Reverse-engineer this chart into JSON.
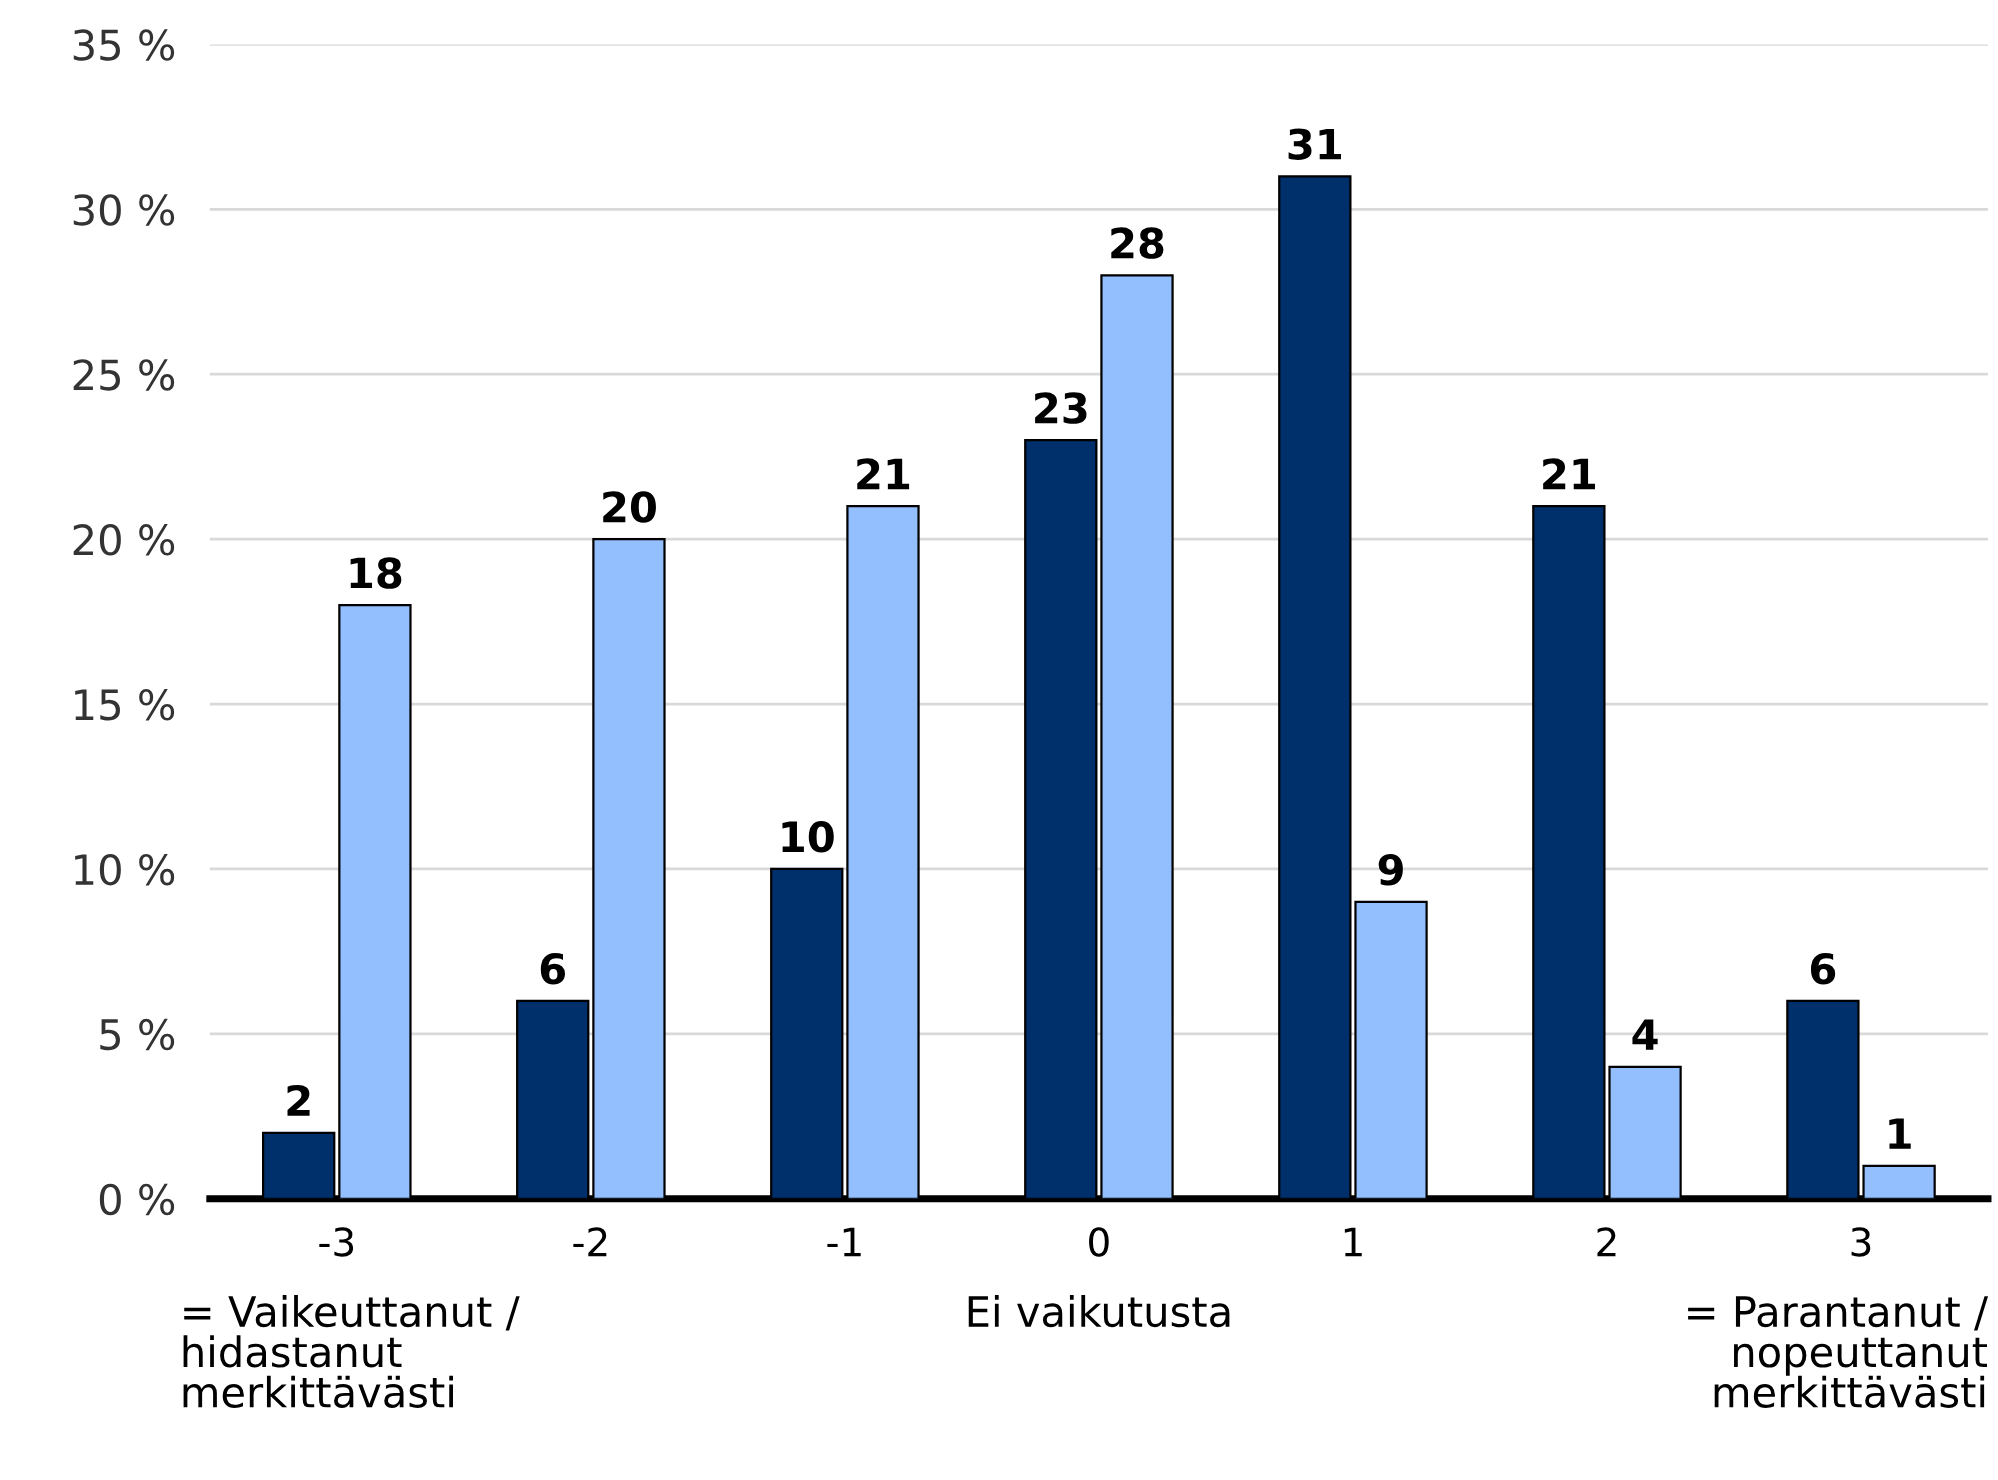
{
  "chart_data": {
    "type": "bar",
    "categories": [
      "-3",
      "-2",
      "-1",
      "0",
      "1",
      "2",
      "3"
    ],
    "series": [
      {
        "color": "#00306b",
        "values": [
          2,
          6,
          10,
          23,
          31,
          21,
          6
        ]
      },
      {
        "color": "#93bfff",
        "values": [
          18,
          20,
          21,
          28,
          9,
          4,
          1
        ]
      }
    ],
    "ylim": [
      0,
      35
    ],
    "yticks": [
      {
        "value": 0,
        "label": "0 %"
      },
      {
        "value": 5,
        "label": "5 %"
      },
      {
        "value": 10,
        "label": "10 %"
      },
      {
        "value": 15,
        "label": "15 %"
      },
      {
        "value": 20,
        "label": "20 %"
      },
      {
        "value": 25,
        "label": "25 %"
      },
      {
        "value": 30,
        "label": "30 %"
      },
      {
        "value": 35,
        "label": "35 %"
      }
    ],
    "grid": "y",
    "data_labels": true,
    "annotations": [
      "= Vaikeuttanut /\nhidastanut\nmerkittävästi",
      "Ei vaikutusta",
      "= Parantanut /\nnopeuttanut\nmerkittävästi"
    ]
  }
}
